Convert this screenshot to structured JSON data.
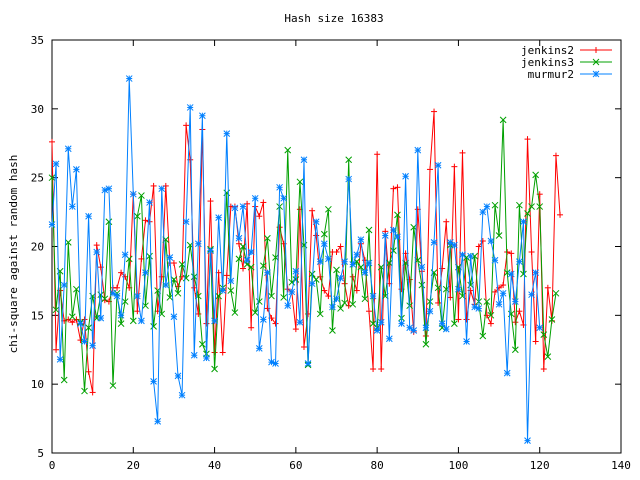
{
  "chart_data": {
    "type": "line",
    "title": "Hash size 16383",
    "xlabel": "",
    "ylabel": "chi-square against random hash",
    "xlim": [
      0,
      140
    ],
    "ylim": [
      5,
      35
    ],
    "xticks": [
      0,
      20,
      40,
      60,
      80,
      100,
      120,
      140
    ],
    "yticks": [
      5,
      10,
      15,
      20,
      25,
      30,
      35
    ],
    "grid": false,
    "legend": "top-right",
    "series": [
      {
        "name": "jenkins2",
        "color": "#ff0000",
        "marker": "plus",
        "values": [
          27.6,
          12.5,
          16.8,
          14.6,
          14.7,
          14.5,
          14.7,
          13.2,
          14.7,
          10.9,
          9.4,
          20.1,
          18.5,
          16.1,
          16.0,
          17.0,
          17.0,
          18.1,
          17.8,
          17.0,
          23.8,
          15.3,
          19.1,
          21.9,
          21.8,
          24.4,
          15.3,
          17.8,
          24.4,
          18.8,
          18.8,
          17.1,
          17.8,
          28.8,
          26.3,
          17.0,
          15.1,
          28.5,
          14.4,
          23.3,
          12.3,
          18.1,
          12.3,
          17.9,
          22.9,
          22.9,
          20.2,
          18.4,
          23.1,
          14.1,
          22.9,
          22.2,
          23.2,
          15.5,
          14.8,
          14.4,
          21.4,
          20.2,
          16.9,
          16.7,
          14.0,
          22.7,
          12.7,
          15.1,
          22.6,
          20.8,
          17.8,
          16.8,
          16.4,
          19.6,
          19.6,
          20.0,
          17.3,
          15.7,
          17.8,
          16.8,
          20.2,
          19.0,
          15.3,
          11.1,
          26.7,
          11.1,
          21.1,
          17.3,
          24.2,
          24.3,
          16.9,
          19.5,
          17.6,
          13.8,
          22.7,
          18.2,
          13.5,
          25.6,
          29.8,
          15.9,
          18.4,
          21.8,
          16.3,
          25.8,
          14.7,
          26.8,
          14.7,
          16.8,
          15.8,
          20.0,
          20.4,
          15.0,
          14.4,
          16.7,
          17.0,
          17.2,
          19.6,
          19.5,
          14.5,
          15.3,
          14.3,
          27.8,
          19.6,
          13.1,
          23.8,
          11.1,
          17.0,
          14.6,
          26.6,
          22.3
        ]
      },
      {
        "name": "jenkins3",
        "color": "#00a000",
        "marker": "cross",
        "values": [
          25.0,
          15.4,
          18.2,
          10.3,
          20.3,
          14.9,
          16.9,
          14.5,
          9.5,
          14.1,
          16.4,
          14.8,
          16.5,
          16.2,
          21.8,
          9.9,
          16.6,
          14.4,
          16.0,
          19.1,
          14.6,
          22.2,
          23.7,
          15.7,
          19.3,
          14.2,
          16.8,
          15.1,
          20.5,
          16.3,
          17.6,
          16.6,
          18.7,
          17.7,
          20.1,
          17.8,
          16.4,
          12.9,
          12.2,
          19.8,
          11.1,
          16.4,
          17.0,
          23.9,
          16.8,
          15.2,
          19.1,
          20.0,
          18.7,
          18.5,
          15.2,
          16.0,
          18.6,
          20.6,
          16.4,
          19.2,
          22.9,
          16.3,
          27.0,
          17.4,
          17.6,
          24.7,
          20.1,
          11.4,
          18.0,
          17.6,
          15.1,
          20.9,
          22.7,
          13.9,
          18.3,
          15.5,
          15.9,
          26.3,
          15.8,
          18.9,
          18.5,
          16.2,
          21.2,
          14.4,
          14.1,
          18.5,
          16.4,
          18.8,
          19.7,
          22.3,
          14.8,
          18.8,
          15.7,
          21.4,
          19.0,
          17.2,
          12.9,
          16.0,
          18.1,
          17.0,
          14.1,
          16.9,
          20.1,
          14.4,
          18.5,
          16.4,
          19.2,
          17.2,
          19.3,
          16.0,
          13.5,
          16.0,
          15.0,
          23.0,
          20.8,
          29.2,
          18.1,
          15.1,
          12.5,
          23.0,
          18.0,
          22.4,
          22.9,
          25.2,
          22.9,
          13.6,
          12.0,
          14.7,
          16.6
        ]
      },
      {
        "name": "murmur2",
        "color": "#0080ff",
        "marker": "star",
        "values": [
          21.6,
          26.0,
          11.8,
          17.2,
          27.1,
          22.9,
          25.6,
          14.4,
          13.1,
          22.2,
          12.8,
          19.6,
          14.8,
          24.1,
          24.2,
          16.6,
          16.4,
          15.0,
          19.4,
          32.2,
          23.8,
          16.4,
          14.6,
          18.1,
          23.2,
          10.2,
          7.3,
          24.2,
          17.2,
          19.2,
          14.9,
          10.6,
          9.2,
          21.8,
          30.1,
          12.1,
          20.2,
          29.5,
          11.9,
          19.7,
          14.6,
          22.1,
          16.8,
          28.2,
          17.5,
          22.8,
          20.6,
          22.9,
          19.0,
          19.6,
          23.5,
          12.6,
          14.7,
          18.1,
          11.6,
          11.5,
          24.3,
          23.5,
          15.7,
          16.7,
          18.2,
          14.5,
          26.3,
          11.5,
          17.3,
          21.8,
          18.9,
          20.2,
          19.1,
          15.6,
          16.2,
          17.7,
          18.9,
          24.9,
          18.7,
          19.4,
          20.5,
          18.1,
          18.8,
          16.4,
          13.9,
          14.5,
          20.8,
          13.3,
          21.2,
          20.7,
          14.4,
          25.1,
          14.1,
          13.9,
          27.0,
          18.5,
          14.1,
          15.3,
          20.3,
          25.9,
          14.4,
          14.0,
          20.3,
          20.1,
          16.9,
          19.4,
          13.1,
          19.3,
          15.6,
          15.5,
          22.5,
          22.9,
          20.4,
          19.0,
          15.8,
          16.6,
          10.8,
          18.0,
          16.0,
          18.9,
          21.8,
          5.9,
          16.5,
          18.1,
          14.1
        ]
      }
    ]
  }
}
